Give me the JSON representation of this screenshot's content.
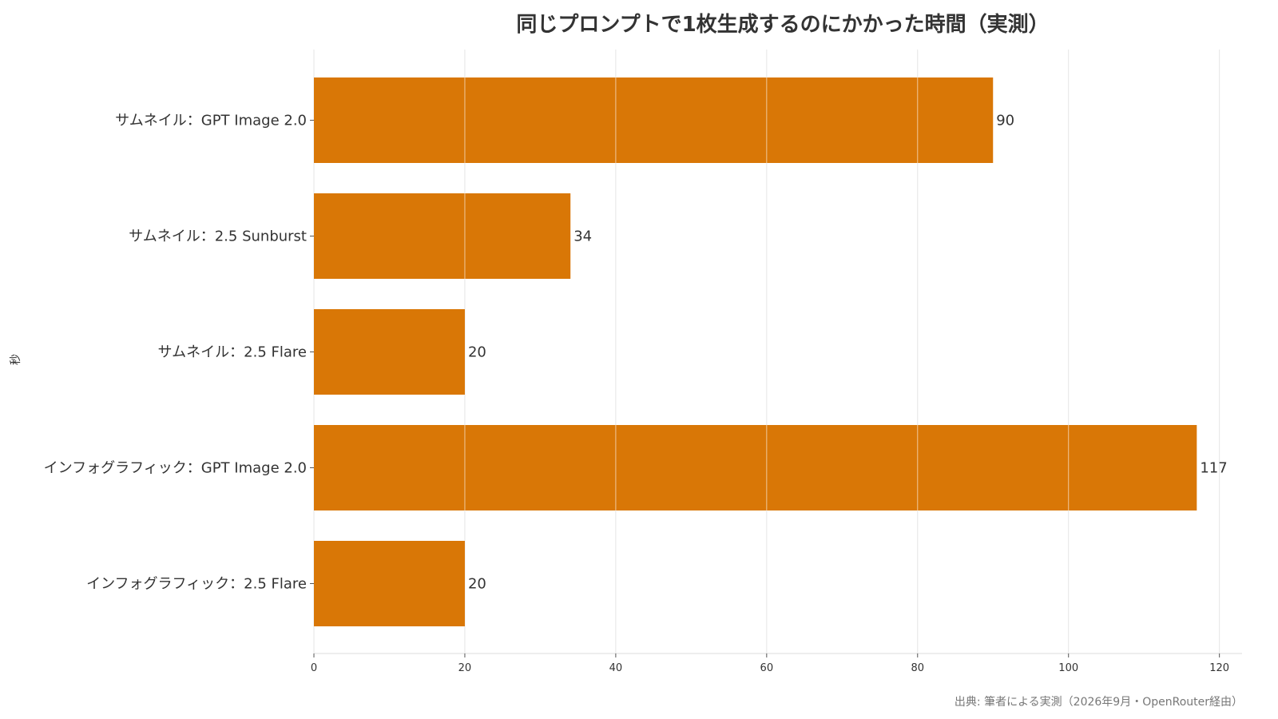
{
  "chart_data": {
    "type": "bar",
    "orientation": "horizontal",
    "title": "同じプロンプトで1枚生成するのにかかった時間（実測）",
    "ylabel": "秒",
    "xlabel": "",
    "categories": [
      "サムネイル：GPT Image 2.0",
      "サムネイル：2.5 Sunburst",
      "サムネイル：2.5 Flare",
      "インフォグラフィック：GPT Image 2.0",
      "インフォグラフィック：2.5 Flare"
    ],
    "values": [
      90,
      34,
      20,
      117,
      20
    ],
    "value_labels": [
      "90",
      "34",
      "20",
      "117",
      "20"
    ],
    "xlim": [
      0,
      123
    ],
    "xticks": [
      0,
      20,
      40,
      60,
      80,
      100,
      120
    ],
    "grid": "vertical",
    "bar_color": "#d97706",
    "source": "出典: 筆者による実測（2026年9月・OpenRouter経由）"
  }
}
